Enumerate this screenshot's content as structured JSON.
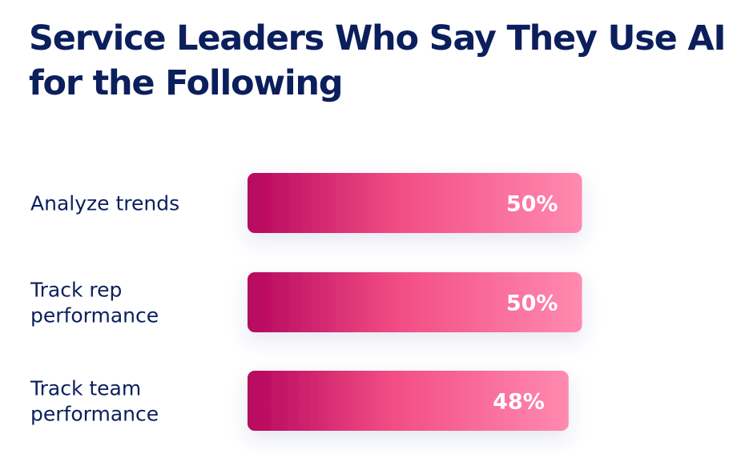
{
  "colors": {
    "title": "#0b1f5c",
    "bar_start": "#b5065e",
    "bar_mid": "#f24d84",
    "bar_end": "#ff8ab0",
    "value_text": "#ffffff"
  },
  "chart_data": {
    "type": "bar",
    "orientation": "horizontal",
    "title": "Service Leaders Who Say They Use AI for the Following",
    "categories": [
      [
        "Analyze trends"
      ],
      [
        "Track rep",
        "performance"
      ],
      [
        "Track team",
        "performance"
      ]
    ],
    "values": [
      50,
      50,
      48
    ],
    "value_labels": [
      "50%",
      "50%",
      "48%"
    ],
    "unit": "%",
    "grid": false,
    "legend": "none"
  }
}
